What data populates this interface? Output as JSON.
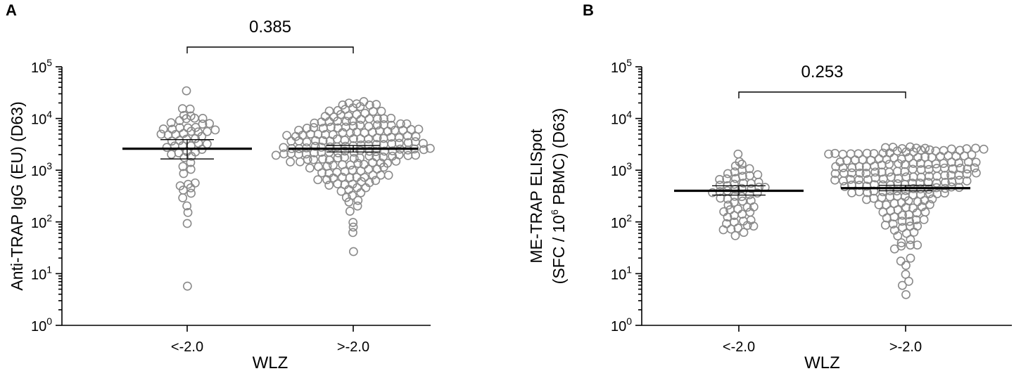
{
  "chart_data": [
    {
      "panel": "A",
      "type": "scatter",
      "y_scale": "log",
      "ylim": [
        1,
        100000
      ],
      "yticks": [
        1,
        10,
        100,
        1000,
        10000,
        100000
      ],
      "ylabel": "Anti-TRAP IgG (EU) (D63)",
      "ylabel_lines": [
        "Anti-TRAP IgG (EU) (D63)"
      ],
      "xlabel": "WLZ",
      "categories": [
        "<-2.0",
        ">-2.0"
      ],
      "p_value": "0.385",
      "groups": [
        {
          "category": "<-2.0",
          "median": 2600,
          "ci": [
            1650,
            3900
          ],
          "n": 58,
          "values": [
            6,
            95,
            150,
            210,
            280,
            360,
            420,
            460,
            500,
            530,
            560,
            900,
            1000,
            1200,
            1400,
            1700,
            1900,
            2000,
            2100,
            2200,
            2300,
            2500,
            2700,
            2900,
            3000,
            3100,
            3200,
            3300,
            3500,
            3800,
            4000,
            4200,
            4500,
            4800,
            5000,
            5100,
            5200,
            5400,
            5500,
            5800,
            6000,
            6200,
            6400,
            6500,
            6600,
            7000,
            7500,
            8000,
            8500,
            9000,
            9500,
            10000,
            10500,
            11000,
            11500,
            15000,
            15500,
            33000
          ]
        },
        {
          "category": ">-2.0",
          "median": 2600,
          "ci": [
            2250,
            3000
          ],
          "n": 190,
          "values": [
            27,
            65,
            80,
            95,
            160,
            200,
            240,
            270,
            300,
            330,
            360,
            390,
            410,
            440,
            470,
            500,
            520,
            540,
            560,
            580,
            600,
            620,
            640,
            660,
            680,
            700,
            720,
            740,
            760,
            780,
            800,
            830,
            860,
            890,
            920,
            950,
            980,
            1010,
            1040,
            1070,
            1100,
            1130,
            1160,
            1190,
            1220,
            1250,
            1280,
            1310,
            1340,
            1370,
            1400,
            1430,
            1460,
            1490,
            1520,
            1550,
            1580,
            1610,
            1640,
            1670,
            1700,
            1730,
            1760,
            1790,
            1820,
            1850,
            1880,
            1910,
            1940,
            1970,
            2000,
            2030,
            2060,
            2090,
            2120,
            2150,
            2180,
            2210,
            2240,
            2270,
            2300,
            2330,
            2360,
            2390,
            2420,
            2450,
            2480,
            2510,
            2540,
            2570,
            2600,
            2640,
            2680,
            2720,
            2760,
            2800,
            2840,
            2880,
            2920,
            2960,
            3000,
            3050,
            3100,
            3150,
            3200,
            3250,
            3300,
            3350,
            3400,
            3450,
            3500,
            3560,
            3620,
            3680,
            3740,
            3800,
            3860,
            3920,
            3980,
            4040,
            4100,
            4170,
            4240,
            4310,
            4380,
            4450,
            4520,
            4590,
            4660,
            4730,
            4800,
            4880,
            4960,
            5040,
            5120,
            5200,
            5290,
            5380,
            5470,
            5560,
            5650,
            5750,
            5850,
            5950,
            6050,
            6150,
            6260,
            6370,
            6480,
            6590,
            6700,
            6830,
            6960,
            7090,
            7220,
            7350,
            7500,
            7650,
            7800,
            7950,
            8100,
            8300,
            8500,
            8700,
            8900,
            9100,
            9350,
            9600,
            9850,
            10100,
            10400,
            10700,
            11000,
            11400,
            11800,
            12200,
            12700,
            13200,
            13700,
            14200,
            14800,
            15400,
            16000,
            16700,
            17400,
            18100,
            18800,
            19500,
            20000,
            20500
          ]
        }
      ]
    },
    {
      "panel": "B",
      "type": "scatter",
      "y_scale": "log",
      "ylim": [
        1,
        100000
      ],
      "yticks": [
        1,
        10,
        100,
        1000,
        10000,
        100000
      ],
      "ylabel": "ME-TRAP ELISpot (SFC / 10^6 PBMC) (D63)",
      "ylabel_lines": [
        "ME-TRAP ELISpot",
        "(SFC / 10",
        "6",
        " PBMC) (D63)"
      ],
      "xlabel": "WLZ",
      "categories": [
        "<-2.0",
        ">-2.0"
      ],
      "p_value": "0.253",
      "groups": [
        {
          "category": "<-2.0",
          "median": 400,
          "ci": [
            330,
            500
          ],
          "n": 58,
          "values": [
            52,
            62,
            68,
            72,
            78,
            82,
            86,
            90,
            95,
            100,
            110,
            120,
            130,
            140,
            150,
            160,
            170,
            180,
            190,
            200,
            215,
            230,
            245,
            260,
            275,
            290,
            305,
            320,
            335,
            350,
            365,
            380,
            395,
            410,
            425,
            440,
            455,
            470,
            490,
            510,
            530,
            550,
            580,
            610,
            640,
            670,
            700,
            740,
            780,
            830,
            880,
            940,
            1000,
            1080,
            1170,
            1280,
            1500,
            2000
          ]
        },
        {
          "category": ">-2.0",
          "median": 450,
          "ci": [
            400,
            510
          ],
          "n": 190,
          "values": [
            4,
            6,
            7,
            10,
            14,
            18,
            20,
            30,
            33,
            35,
            36,
            40,
            45,
            55,
            60,
            65,
            70,
            75,
            80,
            85,
            90,
            95,
            100,
            105,
            110,
            116,
            122,
            128,
            134,
            140,
            147,
            154,
            161,
            168,
            175,
            183,
            191,
            199,
            207,
            215,
            223,
            231,
            239,
            247,
            255,
            263,
            271,
            279,
            287,
            295,
            303,
            311,
            319,
            327,
            335,
            343,
            351,
            359,
            367,
            375,
            383,
            391,
            399,
            407,
            415,
            423,
            431,
            439,
            447,
            455,
            463,
            471,
            479,
            487,
            495,
            503,
            511,
            519,
            527,
            535,
            543,
            551,
            560,
            570,
            580,
            590,
            600,
            610,
            620,
            630,
            640,
            650,
            660,
            670,
            680,
            690,
            700,
            712,
            724,
            736,
            748,
            760,
            772,
            784,
            796,
            808,
            820,
            833,
            846,
            859,
            872,
            885,
            898,
            911,
            924,
            937,
            950,
            965,
            980,
            995,
            1010,
            1025,
            1040,
            1055,
            1070,
            1085,
            1100,
            1118,
            1136,
            1154,
            1172,
            1190,
            1208,
            1226,
            1244,
            1262,
            1280,
            1300,
            1320,
            1340,
            1360,
            1380,
            1400,
            1420,
            1440,
            1460,
            1480,
            1500,
            1525,
            1550,
            1575,
            1600,
            1625,
            1650,
            1675,
            1700,
            1725,
            1750,
            1780,
            1810,
            1840,
            1870,
            1900,
            1930,
            1960,
            1990,
            2020,
            2050,
            2080,
            2110,
            2140,
            2170,
            2200,
            2230,
            2260,
            2290,
            2320,
            2350,
            2380,
            2410,
            2440,
            2470,
            2500,
            2530,
            2560,
            2590,
            2620,
            2650,
            2680,
            2700,
            2720,
            2740
          ]
        }
      ]
    }
  ]
}
